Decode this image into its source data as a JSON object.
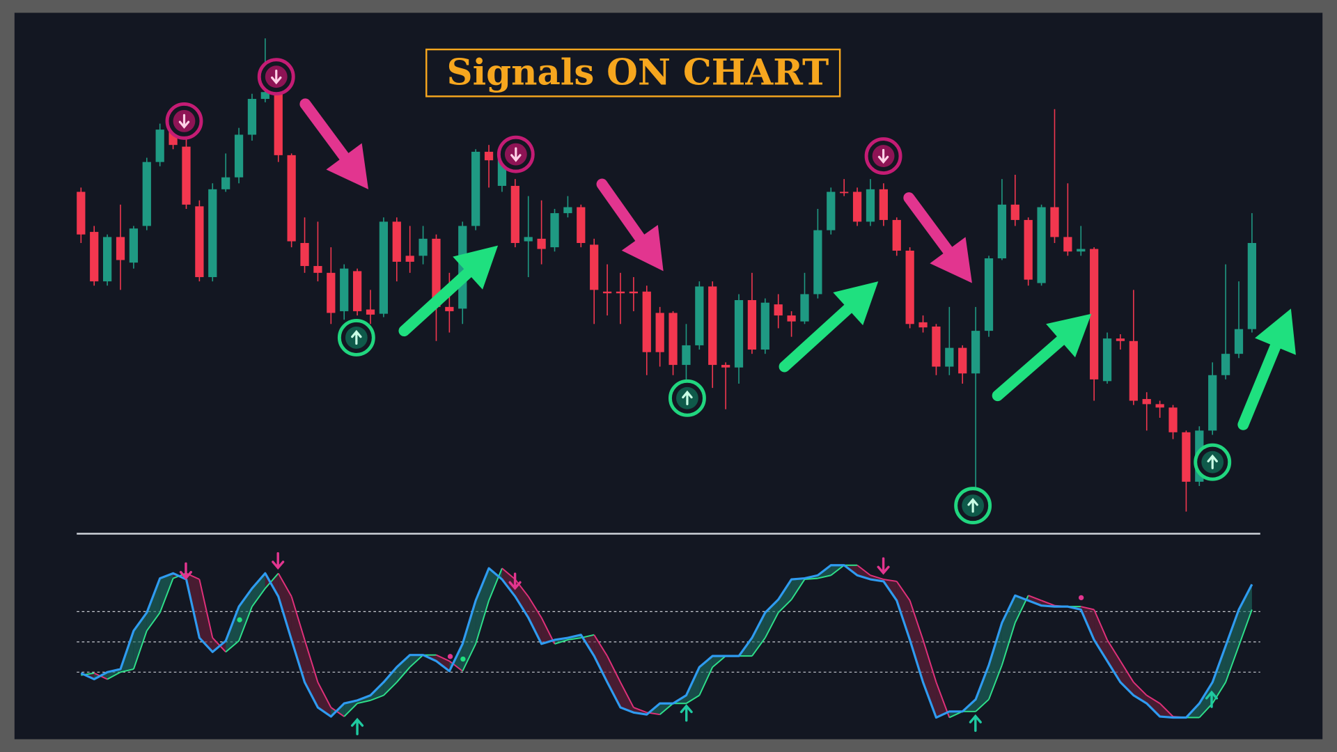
{
  "chart_data": [
    {
      "type": "candlestick",
      "title": "Signals ON CHART",
      "up_color": "#1f9a83",
      "down_color": "#f2374f",
      "ylim": [
        0,
        600
      ],
      "open": [
        395,
        348,
        290,
        342,
        312,
        355,
        430,
        468,
        448,
        378,
        295,
        398,
        412,
        462,
        504,
        510,
        438,
        335,
        308,
        300,
        255,
        302,
        257,
        252,
        360,
        320,
        320,
        340,
        260,
        258,
        355,
        442,
        402,
        402,
        337,
        340,
        330,
        370,
        377,
        333,
        278,
        278,
        278,
        278,
        253,
        253,
        192,
        215,
        284,
        192,
        189,
        268,
        210,
        263,
        250,
        243,
        275,
        350,
        395,
        395,
        360,
        398,
        362,
        326,
        242,
        237,
        190,
        212,
        182,
        232,
        317,
        380,
        362,
        288,
        377,
        342,
        325,
        328,
        173,
        223,
        220,
        152,
        146,
        142,
        113,
        55,
        115,
        180,
        205,
        234
      ],
      "high": [
        400,
        355,
        345,
        380,
        355,
        435,
        475,
        475,
        460,
        385,
        405,
        440,
        470,
        510,
        575,
        515,
        440,
        365,
        360,
        330,
        310,
        305,
        280,
        365,
        365,
        355,
        355,
        345,
        300,
        360,
        445,
        450,
        450,
        410,
        390,
        385,
        375,
        390,
        380,
        340,
        310,
        300,
        295,
        285,
        260,
        255,
        240,
        290,
        290,
        195,
        275,
        300,
        270,
        275,
        255,
        300,
        375,
        400,
        410,
        400,
        410,
        405,
        365,
        330,
        250,
        240,
        260,
        215,
        260,
        320,
        410,
        415,
        365,
        380,
        492,
        405,
        355,
        330,
        230,
        228,
        280,
        160,
        150,
        145,
        115,
        120,
        195,
        310,
        290,
        370
      ],
      "low": [
        335,
        285,
        285,
        280,
        305,
        350,
        425,
        445,
        375,
        290,
        290,
        395,
        405,
        455,
        500,
        430,
        330,
        300,
        290,
        240,
        245,
        250,
        240,
        248,
        290,
        300,
        310,
        220,
        230,
        240,
        350,
        400,
        395,
        330,
        295,
        310,
        325,
        365,
        330,
        240,
        250,
        240,
        255,
        180,
        190,
        180,
        175,
        210,
        165,
        140,
        170,
        205,
        205,
        235,
        225,
        240,
        270,
        345,
        390,
        355,
        355,
        355,
        320,
        235,
        230,
        180,
        180,
        170,
        30,
        225,
        315,
        355,
        285,
        285,
        335,
        320,
        320,
        150,
        170,
        210,
        145,
        115,
        130,
        105,
        20,
        50,
        110,
        175,
        200,
        230
      ],
      "close": [
        345,
        290,
        342,
        315,
        352,
        430,
        468,
        450,
        380,
        295,
        398,
        412,
        462,
        504,
        512,
        438,
        337,
        308,
        300,
        253,
        305,
        255,
        251,
        360,
        313,
        313,
        340,
        260,
        255,
        355,
        442,
        432,
        445,
        335,
        342,
        328,
        370,
        377,
        335,
        280,
        276,
        276,
        276,
        207,
        207,
        192,
        215,
        284,
        192,
        189,
        268,
        210,
        265,
        250,
        243,
        275,
        350,
        395,
        394,
        360,
        398,
        362,
        326,
        240,
        236,
        190,
        212,
        182,
        232,
        317,
        380,
        362,
        292,
        377,
        342,
        325,
        328,
        175,
        223,
        220,
        150,
        146,
        142,
        113,
        55,
        115,
        180,
        205,
        234,
        335
      ]
    },
    {
      "type": "line",
      "ylim": [
        -30,
        130
      ],
      "yticks": [
        20,
        50,
        80
      ],
      "grid": true,
      "series": [
        {
          "color": "#2f9bf0",
          "values": [
            19,
            13,
            20,
            23,
            61,
            79,
            113,
            118,
            112,
            54,
            40,
            51,
            85,
            103,
            118,
            95,
            52,
            10,
            -15,
            -24,
            -11,
            -8,
            -3,
            10,
            25,
            37,
            37,
            31,
            21,
            48,
            91,
            123,
            112,
            95,
            74,
            48,
            52,
            54,
            57,
            36,
            10,
            -15,
            -20,
            -22,
            -11,
            -11,
            -3,
            25,
            36,
            36,
            36,
            54,
            79,
            92,
            112,
            113,
            116,
            126,
            126,
            116,
            112,
            110,
            91,
            52,
            10,
            -25,
            -19,
            -19,
            -7,
            27,
            69,
            96,
            91,
            86,
            85,
            85,
            82,
            52,
            31,
            10,
            -3,
            -11,
            -24,
            -25,
            -25,
            -11,
            10,
            46,
            82,
            107
          ]
        },
        {
          "color": "#2ee08a",
          "down_color": "#e0307a",
          "values": [
            17,
            19,
            13,
            20,
            23,
            61,
            79,
            113,
            118,
            112,
            54,
            40,
            51,
            85,
            103,
            118,
            95,
            52,
            10,
            -15,
            -24,
            -11,
            -8,
            -3,
            10,
            25,
            37,
            37,
            31,
            21,
            48,
            91,
            123,
            112,
            95,
            74,
            48,
            52,
            54,
            57,
            36,
            10,
            -15,
            -20,
            -22,
            -11,
            -11,
            -3,
            25,
            36,
            36,
            36,
            54,
            79,
            92,
            112,
            113,
            116,
            126,
            126,
            116,
            112,
            110,
            91,
            52,
            10,
            -25,
            -19,
            -19,
            -7,
            27,
            69,
            96,
            91,
            86,
            85,
            85,
            82,
            52,
            31,
            10,
            -3,
            -11,
            -24,
            -25,
            -25,
            -11,
            10,
            46,
            82
          ]
        }
      ]
    }
  ]
}
